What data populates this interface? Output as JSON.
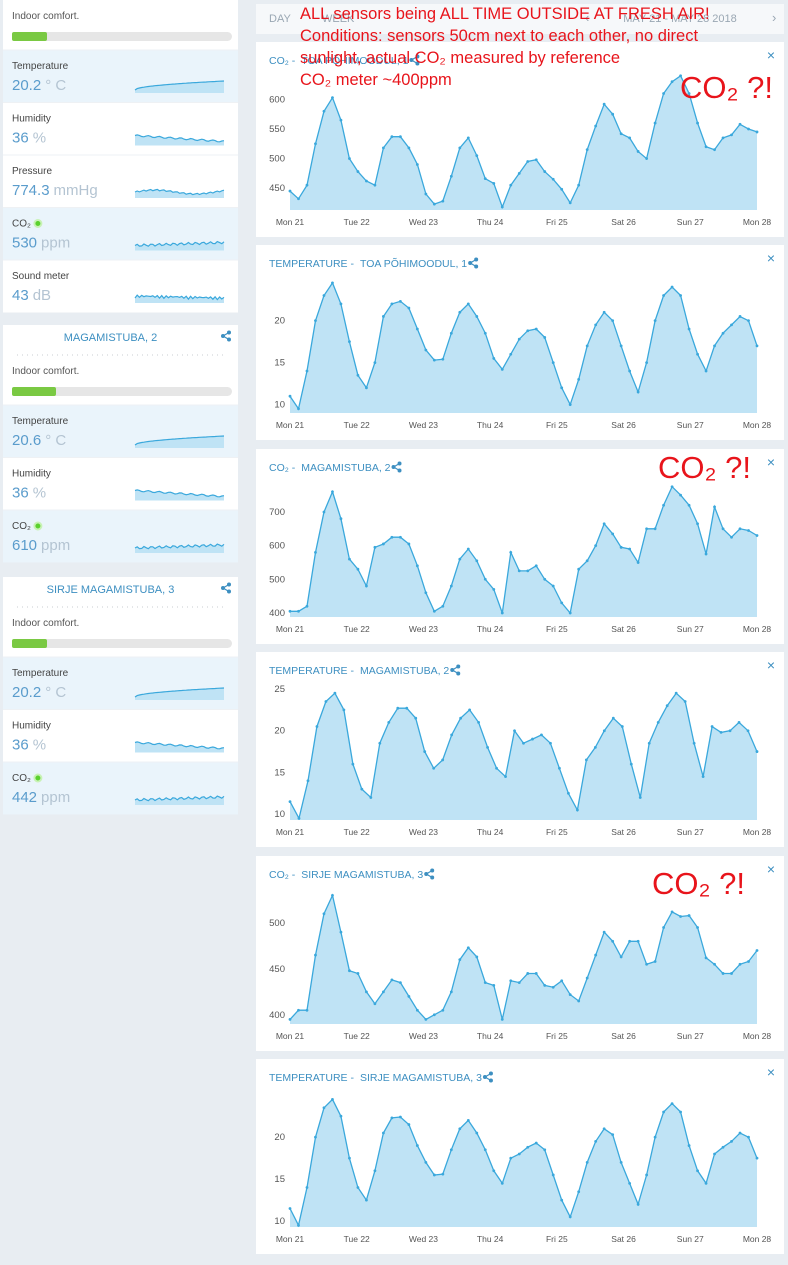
{
  "tabs": [
    "DAY",
    "WEEK"
  ],
  "date_range": "MAY 21 - MAY 28 2018",
  "annotation": {
    "lines": [
      "ALL sensors being ALL TIME OUTSIDE AT FRESH AIR!",
      "Conditions: sensors 50cm next to each other, no direct",
      "sunlight, actual CO₂ measured by reference",
      "CO₂ meter  ~400ppm"
    ],
    "callouts": [
      "CO₂ ?!",
      "CO₂ ?!",
      "CO₂ ?!"
    ]
  },
  "sidebar": [
    {
      "comfort_label": "Indoor comfort.",
      "metrics": [
        {
          "label": "Temperature",
          "value": 20.2,
          "unit": "° C"
        },
        {
          "label": "Humidity",
          "value": 36,
          "unit": "%"
        },
        {
          "label": "Pressure",
          "value": 774.3,
          "unit": "mmHg"
        },
        {
          "label": "CO₂",
          "value": 530,
          "unit": "ppm"
        },
        {
          "label": "Sound meter",
          "value": 43,
          "unit": "dB"
        }
      ]
    },
    {
      "title": "MAGAMISTUBA, 2",
      "comfort_label": "Indoor comfort.",
      "metrics": [
        {
          "label": "Temperature",
          "value": 20.6,
          "unit": "° C"
        },
        {
          "label": "Humidity",
          "value": 36,
          "unit": "%"
        },
        {
          "label": "CO₂",
          "value": 610,
          "unit": "ppm"
        }
      ]
    },
    {
      "title": "SIRJE MAGAMISTUBA, 3",
      "comfort_label": "Indoor comfort.",
      "metrics": [
        {
          "label": "Temperature",
          "value": 20.2,
          "unit": "° C"
        },
        {
          "label": "Humidity",
          "value": 36,
          "unit": "%"
        },
        {
          "label": "CO₂",
          "value": 442,
          "unit": "ppm"
        }
      ]
    }
  ],
  "charts": [
    {
      "type": "area",
      "color": "#3aa8dc",
      "title_prefix": "CO₂ -",
      "title": "TOA PÕHIMOODUL, 1",
      "categories": [
        "Mon 21",
        "Tue 22",
        "Wed 23",
        "Thu 24",
        "Fri 25",
        "Sat 26",
        "Sun 27",
        "Mon 28"
      ],
      "ylim": [
        413,
        643
      ],
      "yticks": [
        450,
        500,
        550,
        600
      ],
      "values": [
        445,
        432,
        455,
        525,
        580,
        603,
        565,
        500,
        478,
        462,
        455,
        518,
        537,
        537,
        518,
        490,
        440,
        423,
        428,
        470,
        518,
        535,
        505,
        466,
        458,
        418,
        455,
        475,
        495,
        498,
        478,
        465,
        448,
        425,
        455,
        515,
        555,
        592,
        575,
        542,
        535,
        512,
        500,
        560,
        610,
        630,
        640,
        610,
        560,
        520,
        515,
        535,
        540,
        558,
        550,
        545
      ]
    },
    {
      "type": "area",
      "color": "#3aa8dc",
      "title_prefix": "TEMPERATURE -",
      "title": "TOA PÕHIMOODUL, 1",
      "categories": [
        "Mon 21",
        "Tue 22",
        "Wed 23",
        "Thu 24",
        "Fri 25",
        "Sat 26",
        "Sun 27",
        "Mon 28"
      ],
      "ylim": [
        9,
        25.2
      ],
      "yticks": [
        10,
        15,
        20
      ],
      "values": [
        11,
        9.5,
        14,
        20,
        23,
        24.5,
        22,
        17.5,
        13.5,
        12,
        15,
        20.5,
        22,
        22.3,
        21.5,
        19,
        16.5,
        15.3,
        15.4,
        18.5,
        21,
        22,
        20.5,
        18.5,
        15.5,
        14.2,
        16,
        17.8,
        18.8,
        19,
        18,
        15,
        12,
        10,
        13,
        17,
        19.5,
        21,
        20,
        17,
        14,
        11.5,
        15,
        20,
        23,
        24,
        23,
        19,
        16,
        14,
        17,
        18.5,
        19.5,
        20.5,
        20,
        17
      ]
    },
    {
      "type": "area",
      "color": "#3aa8dc",
      "title_prefix": "CO₂ -",
      "title": "MAGAMISTUBA, 2",
      "categories": [
        "Mon 21",
        "Tue 22",
        "Wed 23",
        "Thu 24",
        "Fri 25",
        "Sat 26",
        "Sun 27",
        "Mon 28"
      ],
      "ylim": [
        388,
        792
      ],
      "yticks": [
        400,
        500,
        600,
        700
      ],
      "values": [
        405,
        405,
        420,
        580,
        700,
        760,
        680,
        560,
        530,
        480,
        595,
        605,
        625,
        625,
        605,
        540,
        460,
        405,
        420,
        480,
        560,
        590,
        555,
        500,
        470,
        400,
        580,
        525,
        525,
        540,
        500,
        480,
        430,
        400,
        530,
        555,
        600,
        665,
        635,
        595,
        590,
        550,
        650,
        650,
        720,
        775,
        750,
        720,
        665,
        575,
        715,
        650,
        625,
        650,
        645,
        630
      ]
    },
    {
      "type": "area",
      "color": "#3aa8dc",
      "title_prefix": "TEMPERATURE -",
      "title": "MAGAMISTUBA, 2",
      "categories": [
        "Mon 21",
        "Tue 22",
        "Wed 23",
        "Thu 24",
        "Fri 25",
        "Sat 26",
        "Sun 27",
        "Mon 28"
      ],
      "ylim": [
        9.3,
        25.6
      ],
      "yticks": [
        10,
        15,
        20,
        25
      ],
      "values": [
        11.5,
        9.5,
        14,
        20.5,
        23.5,
        24.5,
        22.5,
        16,
        13,
        12,
        18.5,
        21,
        22.7,
        22.7,
        21.5,
        17.5,
        15.5,
        16.5,
        19.5,
        21.5,
        22.5,
        21,
        18,
        15.5,
        14.5,
        20,
        18.5,
        19,
        19.5,
        18.5,
        15.5,
        12.5,
        10.5,
        16.5,
        18,
        20,
        21.5,
        20.5,
        16,
        12,
        18.5,
        21,
        23,
        24.5,
        23.5,
        18.5,
        14.5,
        20.5,
        19.8,
        20,
        21,
        20,
        17.5
      ]
    },
    {
      "type": "area",
      "color": "#3aa8dc",
      "title_prefix": "CO₂ -",
      "title": "SIRJE MAGAMISTUBA, 3",
      "categories": [
        "Mon 21",
        "Tue 22",
        "Wed 23",
        "Thu 24",
        "Fri 25",
        "Sat 26",
        "Sun 27",
        "Mon 28"
      ],
      "ylim": [
        390,
        538
      ],
      "yticks": [
        400,
        450,
        500
      ],
      "values": [
        395,
        405,
        405,
        465,
        510,
        530,
        490,
        448,
        445,
        425,
        412,
        425,
        438,
        435,
        420,
        405,
        395,
        400,
        405,
        425,
        460,
        473,
        463,
        435,
        432,
        395,
        437,
        435,
        445,
        445,
        432,
        430,
        437,
        422,
        415,
        440,
        465,
        490,
        480,
        463,
        480,
        480,
        455,
        458,
        495,
        512,
        507,
        508,
        495,
        462,
        455,
        445,
        445,
        455,
        458,
        470
      ]
    },
    {
      "type": "area",
      "color": "#3aa8dc",
      "title_prefix": "TEMPERATURE -",
      "title": "SIRJE MAGAMISTUBA, 3",
      "categories": [
        "Mon 21",
        "Tue 22",
        "Wed 23",
        "Thu 24",
        "Fri 25",
        "Sat 26",
        "Sun 27",
        "Mon 28"
      ],
      "ylim": [
        9.3,
        25.5
      ],
      "yticks": [
        10,
        15,
        20
      ],
      "values": [
        11.5,
        9.5,
        14,
        20,
        23.5,
        24.5,
        22.5,
        17.5,
        14,
        12.5,
        16,
        20.5,
        22.3,
        22.4,
        21.5,
        19,
        17,
        15.5,
        15.6,
        18.5,
        21,
        22,
        20.5,
        18.5,
        16,
        14.5,
        17.5,
        18,
        18.8,
        19.3,
        18.5,
        15.5,
        12.5,
        10.5,
        13.5,
        17,
        19.5,
        21,
        20.3,
        17,
        14.5,
        12,
        15.5,
        20,
        23,
        24,
        23,
        19,
        16,
        14.5,
        18,
        18.8,
        19.5,
        20.5,
        20,
        17.5
      ]
    }
  ]
}
